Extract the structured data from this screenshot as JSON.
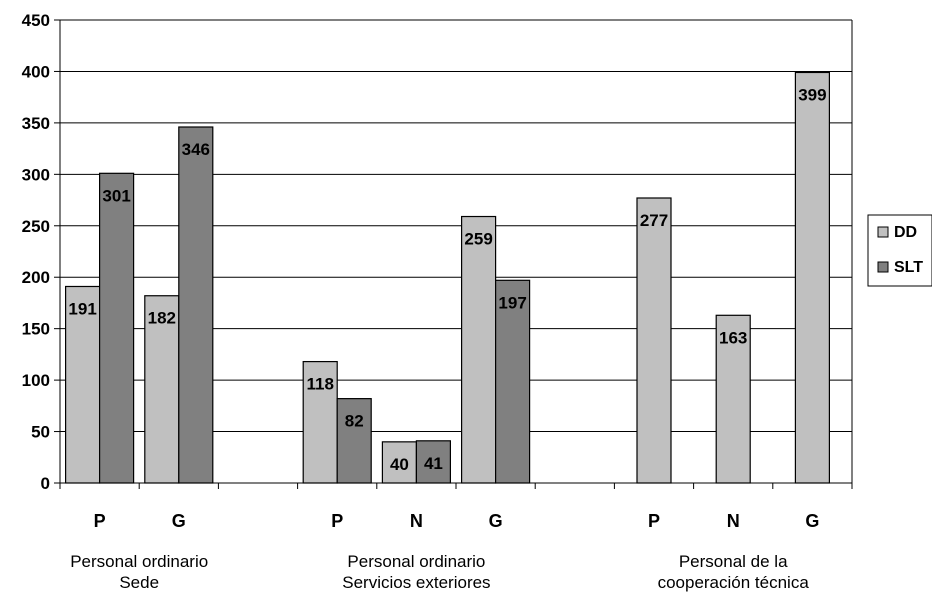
{
  "chart_data": {
    "type": "bar",
    "title": "",
    "xlabel": "",
    "ylabel": "",
    "ylim": [
      0,
      450
    ],
    "yticks": [
      0,
      50,
      100,
      150,
      200,
      250,
      300,
      350,
      400,
      450
    ],
    "grid": true,
    "legend_position": "right",
    "colors": {
      "DD": "#c0c0c0",
      "SLT": "#808080"
    },
    "groups": [
      {
        "label_lines": [
          "Personal ordinario",
          "Sede"
        ],
        "categories": [
          "P",
          "G"
        ]
      },
      {
        "label_lines": [
          "Personal ordinario",
          "Servicios exteriores"
        ],
        "categories": [
          "P",
          "N",
          "G"
        ]
      },
      {
        "label_lines": [
          "Personal de la",
          "cooperación técnica"
        ],
        "categories": [
          "P",
          "N",
          "G"
        ]
      }
    ],
    "categories": [
      "P",
      "G",
      "",
      "P",
      "N",
      "G",
      "",
      "P",
      "N",
      "G"
    ],
    "series": [
      {
        "name": "DD",
        "values": [
          191,
          182,
          null,
          118,
          40,
          259,
          null,
          277,
          163,
          399
        ]
      },
      {
        "name": "SLT",
        "values": [
          301,
          346,
          null,
          82,
          41,
          197,
          null,
          null,
          null,
          null
        ]
      }
    ]
  }
}
